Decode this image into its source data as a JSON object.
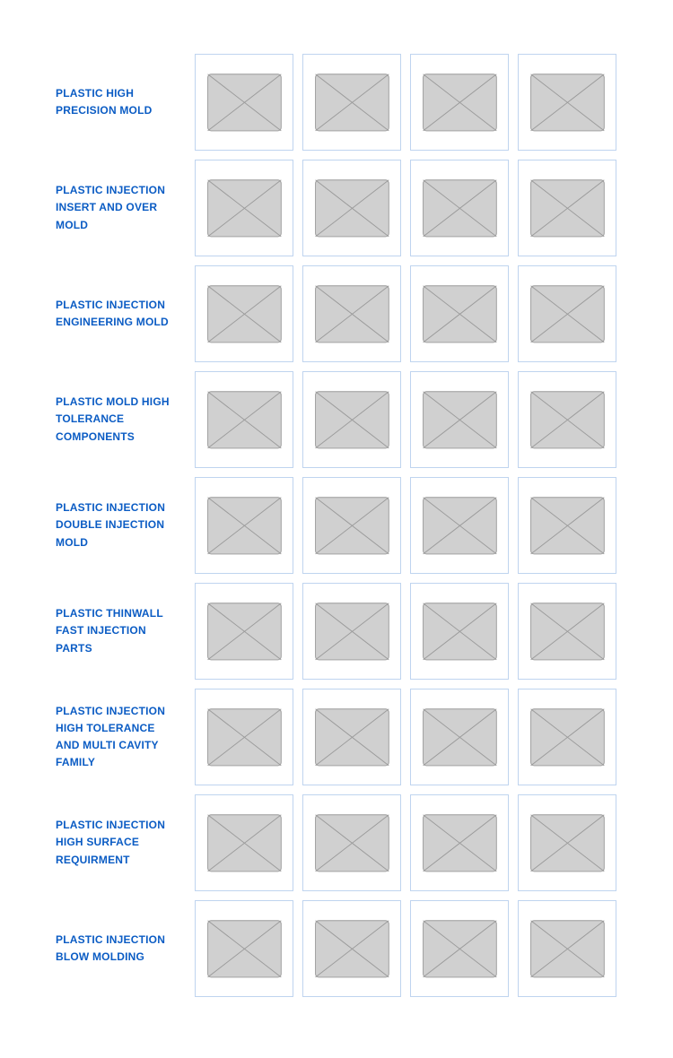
{
  "palette": {
    "label_color": "#0b5cc4",
    "thumb_border": "#bfd4ef",
    "thumb_bg": "#ffffff",
    "placeholder_fill": "#d0d0d0",
    "placeholder_stroke": "#9a9a9a"
  },
  "categories": [
    {
      "id": "precision-mold",
      "label": "PLASTIC HIGH PRECISION MOLD"
    },
    {
      "id": "insert-over-mold",
      "label": "PLASTIC INJECTION INSERT AND OVER MOLD"
    },
    {
      "id": "engineering-mold",
      "label": "PLASTIC INJECTION ENGINEERING MOLD"
    },
    {
      "id": "high-tolerance-components",
      "label": "PLASTIC MOLD HIGH TOLERANCE COMPONENTS"
    },
    {
      "id": "double-injection",
      "label": "PLASTIC INJECTION DOUBLE INJECTION MOLD"
    },
    {
      "id": "thinwall-fast",
      "label": "PLASTIC THINWALL FAST INJECTION PARTS"
    },
    {
      "id": "high-tolerance-multi-cavity",
      "label": "PLASTIC INJECTION HIGH TOLERANCE AND MULTI CAVITY FAMILY"
    },
    {
      "id": "high-surface",
      "label": "PLASTIC INJECTION HIGH SURFACE REQUIRMENT"
    },
    {
      "id": "blow-molding",
      "label": "PLASTIC INJECTION BLOW MOLDING"
    }
  ],
  "thumbs_per_row": 4
}
